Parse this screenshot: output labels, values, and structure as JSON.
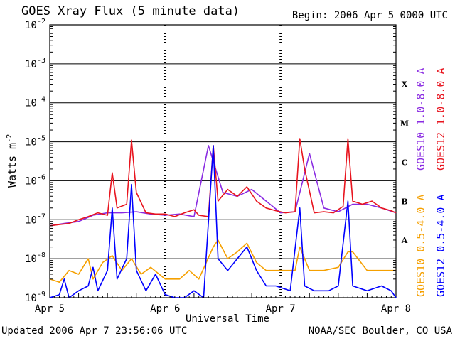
{
  "header": {
    "title": "GOES Xray Flux (5 minute data)",
    "begin_label": "Begin:  2006 Apr 5 0000 UTC"
  },
  "footer": {
    "updated": "Updated 2006 Apr  7 23:56:06 UTC",
    "credit": "NOAA/SEC Boulder, CO USA"
  },
  "chart_data": {
    "type": "line",
    "xlabel": "Universal Time",
    "x_ticks": [
      "Apr 5",
      "Apr 6",
      "Apr 7",
      "Apr 8"
    ],
    "xlim": [
      "2006-04-05T00:00",
      "2006-04-08T00:00"
    ],
    "ylabel_base": "Watts m",
    "ylabel_exp": "-2",
    "y_scale": "log",
    "ylim": [
      1e-09,
      0.01
    ],
    "y_ticks": [
      {
        "base": "10",
        "exp": "-9"
      },
      {
        "base": "10",
        "exp": "-8"
      },
      {
        "base": "10",
        "exp": "-7"
      },
      {
        "base": "10",
        "exp": "-6"
      },
      {
        "base": "10",
        "exp": "-5"
      },
      {
        "base": "10",
        "exp": "-4"
      },
      {
        "base": "10",
        "exp": "-3"
      },
      {
        "base": "10",
        "exp": "-2"
      }
    ],
    "flare_classes": [
      {
        "label": "A",
        "value": 1e-08
      },
      {
        "label": "B",
        "value": 1e-07
      },
      {
        "label": "C",
        "value": 1e-06
      },
      {
        "label": "M",
        "value": 1e-05
      },
      {
        "label": "X",
        "value": 0.0001
      }
    ],
    "grid": "horizontal at each decade",
    "legend_placement": "right, vertical",
    "series": [
      {
        "name": "GOES10 1.0-8.0 A",
        "color": "#8a2be2",
        "points": [
          [
            "2006-04-05T00:00",
            7e-08
          ],
          [
            "2006-04-05T03:00",
            8e-08
          ],
          [
            "2006-04-05T06:00",
            9e-08
          ],
          [
            "2006-04-05T09:00",
            1.3e-07
          ],
          [
            "2006-04-05T12:00",
            1.5e-07
          ],
          [
            "2006-04-05T15:00",
            1.5e-07
          ],
          [
            "2006-04-05T18:00",
            1.6e-07
          ],
          [
            "2006-04-05T21:00",
            1.4e-07
          ],
          [
            "2006-04-06T00:00",
            1.3e-07
          ],
          [
            "2006-04-06T03:00",
            1.4e-07
          ],
          [
            "2006-04-06T06:00",
            1.2e-07
          ],
          [
            "2006-04-06T09:00",
            8e-06
          ],
          [
            "2006-04-06T12:00",
            5e-07
          ],
          [
            "2006-04-06T15:00",
            4e-07
          ],
          [
            "2006-04-06T18:00",
            6e-07
          ],
          [
            "2006-04-06T21:00",
            3e-07
          ],
          [
            "2006-04-07T00:00",
            1.5e-07
          ],
          [
            "2006-04-07T03:00",
            1.6e-07
          ],
          [
            "2006-04-07T06:00",
            5e-06
          ],
          [
            "2006-04-07T09:00",
            2e-07
          ],
          [
            "2006-04-07T12:00",
            1.6e-07
          ],
          [
            "2006-04-07T15:00",
            2.5e-07
          ],
          [
            "2006-04-07T18:00",
            2.5e-07
          ],
          [
            "2006-04-07T21:00",
            2e-07
          ],
          [
            "2006-04-08T00:00",
            1.5e-07
          ]
        ]
      },
      {
        "name": "GOES12 1.0-8.0 A",
        "color": "#e8141e",
        "points": [
          [
            "2006-04-05T00:00",
            7e-08
          ],
          [
            "2006-04-05T02:00",
            7.5e-08
          ],
          [
            "2006-04-05T04:00",
            8e-08
          ],
          [
            "2006-04-05T06:00",
            1e-07
          ],
          [
            "2006-04-05T08:00",
            1.2e-07
          ],
          [
            "2006-04-05T10:00",
            1.5e-07
          ],
          [
            "2006-04-05T12:00",
            1.3e-07
          ],
          [
            "2006-04-05T13:00",
            1.6e-06
          ],
          [
            "2006-04-05T14:00",
            2e-07
          ],
          [
            "2006-04-05T16:00",
            2.5e-07
          ],
          [
            "2006-04-05T17:00",
            1.1e-05
          ],
          [
            "2006-04-05T18:00",
            5e-07
          ],
          [
            "2006-04-05T20:00",
            1.5e-07
          ],
          [
            "2006-04-05T22:00",
            1.4e-07
          ],
          [
            "2006-04-06T00:00",
            1.4e-07
          ],
          [
            "2006-04-06T02:00",
            1.2e-07
          ],
          [
            "2006-04-06T04:00",
            1.5e-07
          ],
          [
            "2006-04-06T06:00",
            1.8e-07
          ],
          [
            "2006-04-06T07:00",
            1.3e-07
          ],
          [
            "2006-04-06T09:00",
            1.2e-07
          ],
          [
            "2006-04-06T10:00",
            8e-06
          ],
          [
            "2006-04-06T11:00",
            3e-07
          ],
          [
            "2006-04-06T13:00",
            6e-07
          ],
          [
            "2006-04-06T15:00",
            4e-07
          ],
          [
            "2006-04-06T17:00",
            7e-07
          ],
          [
            "2006-04-06T19:00",
            3e-07
          ],
          [
            "2006-04-06T21:00",
            2e-07
          ],
          [
            "2006-04-06T23:00",
            1.7e-07
          ],
          [
            "2006-04-07T01:00",
            1.5e-07
          ],
          [
            "2006-04-07T03:00",
            1.6e-07
          ],
          [
            "2006-04-07T04:00",
            1.2e-05
          ],
          [
            "2006-04-07T05:00",
            2e-06
          ],
          [
            "2006-04-07T07:00",
            1.5e-07
          ],
          [
            "2006-04-07T09:00",
            1.6e-07
          ],
          [
            "2006-04-07T11:00",
            1.5e-07
          ],
          [
            "2006-04-07T13:00",
            2.2e-07
          ],
          [
            "2006-04-07T14:00",
            1.2e-05
          ],
          [
            "2006-04-07T15:00",
            3e-07
          ],
          [
            "2006-04-07T17:00",
            2.5e-07
          ],
          [
            "2006-04-07T19:00",
            3e-07
          ],
          [
            "2006-04-07T21:00",
            2e-07
          ],
          [
            "2006-04-07T23:00",
            1.7e-07
          ],
          [
            "2006-04-08T00:00",
            1.5e-07
          ]
        ]
      },
      {
        "name": "GOES10 0.5-4.0 A",
        "color": "#f5a000",
        "points": [
          [
            "2006-04-05T00:00",
            3e-09
          ],
          [
            "2006-04-05T02:00",
            2.5e-09
          ],
          [
            "2006-04-05T04:00",
            5e-09
          ],
          [
            "2006-04-05T06:00",
            4e-09
          ],
          [
            "2006-04-05T08:00",
            1e-08
          ],
          [
            "2006-04-05T09:00",
            3e-09
          ],
          [
            "2006-04-05T11:00",
            8e-09
          ],
          [
            "2006-04-05T13:00",
            1.2e-08
          ],
          [
            "2006-04-05T15:00",
            5e-09
          ],
          [
            "2006-04-05T17:00",
            1e-08
          ],
          [
            "2006-04-05T19:00",
            4e-09
          ],
          [
            "2006-04-05T21:00",
            6e-09
          ],
          [
            "2006-04-06T00:00",
            3e-09
          ],
          [
            "2006-04-06T03:00",
            3e-09
          ],
          [
            "2006-04-06T05:00",
            5e-09
          ],
          [
            "2006-04-06T07:00",
            3e-09
          ],
          [
            "2006-04-06T10:00",
            2e-08
          ],
          [
            "2006-04-06T11:00",
            3e-08
          ],
          [
            "2006-04-06T13:00",
            1e-08
          ],
          [
            "2006-04-06T15:00",
            1.5e-08
          ],
          [
            "2006-04-06T17:00",
            2.5e-08
          ],
          [
            "2006-04-06T19:00",
            8e-09
          ],
          [
            "2006-04-06T21:00",
            5e-09
          ],
          [
            "2006-04-06T23:00",
            5e-09
          ],
          [
            "2006-04-07T01:00",
            5e-09
          ],
          [
            "2006-04-07T03:00",
            5e-09
          ],
          [
            "2006-04-07T04:00",
            2e-08
          ],
          [
            "2006-04-07T06:00",
            5e-09
          ],
          [
            "2006-04-07T09:00",
            5e-09
          ],
          [
            "2006-04-07T12:00",
            6e-09
          ],
          [
            "2006-04-07T14:00",
            1.5e-08
          ],
          [
            "2006-04-07T15:00",
            1.5e-08
          ],
          [
            "2006-04-07T18:00",
            5e-09
          ],
          [
            "2006-04-07T21:00",
            5e-09
          ],
          [
            "2006-04-08T00:00",
            5e-09
          ]
        ]
      },
      {
        "name": "GOES12 0.5-4.0 A",
        "color": "#0000ff",
        "points": [
          [
            "2006-04-05T00:00",
            1e-09
          ],
          [
            "2006-04-05T02:00",
            1.2e-09
          ],
          [
            "2006-04-05T03:00",
            3e-09
          ],
          [
            "2006-04-05T04:00",
            1e-09
          ],
          [
            "2006-04-05T06:00",
            1.5e-09
          ],
          [
            "2006-04-05T08:00",
            2e-09
          ],
          [
            "2006-04-05T09:00",
            6e-09
          ],
          [
            "2006-04-05T10:00",
            1.5e-09
          ],
          [
            "2006-04-05T12:00",
            5e-09
          ],
          [
            "2006-04-05T13:00",
            2e-07
          ],
          [
            "2006-04-05T14:00",
            3e-09
          ],
          [
            "2006-04-05T16:00",
            1e-08
          ],
          [
            "2006-04-05T17:00",
            8e-07
          ],
          [
            "2006-04-05T18:00",
            5e-09
          ],
          [
            "2006-04-05T20:00",
            1.5e-09
          ],
          [
            "2006-04-05T22:00",
            4e-09
          ],
          [
            "2006-04-06T00:00",
            1.2e-09
          ],
          [
            "2006-04-06T02:00",
            1e-09
          ],
          [
            "2006-04-06T04:00",
            1e-09
          ],
          [
            "2006-04-06T06:00",
            1.5e-09
          ],
          [
            "2006-04-06T08:00",
            1e-09
          ],
          [
            "2006-04-06T10:00",
            8e-06
          ],
          [
            "2006-04-06T11:00",
            1e-08
          ],
          [
            "2006-04-06T13:00",
            5e-09
          ],
          [
            "2006-04-06T15:00",
            1e-08
          ],
          [
            "2006-04-06T17:00",
            2e-08
          ],
          [
            "2006-04-06T19:00",
            5e-09
          ],
          [
            "2006-04-06T21:00",
            2e-09
          ],
          [
            "2006-04-06T23:00",
            2e-09
          ],
          [
            "2006-04-07T02:00",
            1.5e-09
          ],
          [
            "2006-04-07T04:00",
            2e-07
          ],
          [
            "2006-04-07T05:00",
            2e-09
          ],
          [
            "2006-04-07T07:00",
            1.5e-09
          ],
          [
            "2006-04-07T10:00",
            1.5e-09
          ],
          [
            "2006-04-07T12:00",
            2e-09
          ],
          [
            "2006-04-07T14:00",
            3e-07
          ],
          [
            "2006-04-07T15:00",
            2e-09
          ],
          [
            "2006-04-07T18:00",
            1.5e-09
          ],
          [
            "2006-04-07T21:00",
            2e-09
          ],
          [
            "2006-04-07T23:00",
            1.5e-09
          ],
          [
            "2006-04-08T00:00",
            1e-09
          ]
        ]
      }
    ]
  }
}
